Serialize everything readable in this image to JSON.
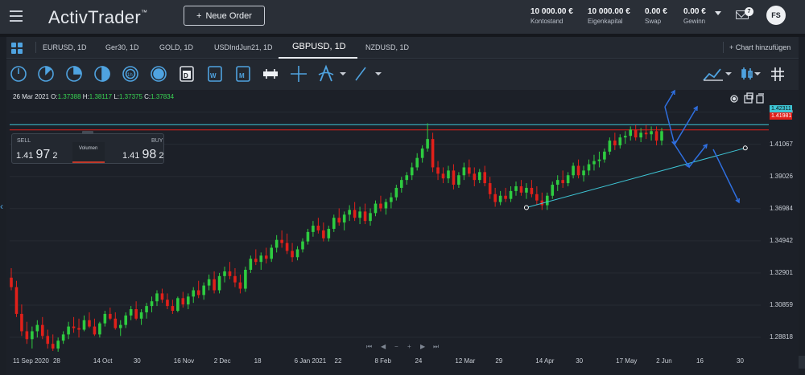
{
  "app": {
    "logo_text": "ActivTrader",
    "logo_tm": "™",
    "new_order_label": "Neue Order",
    "stats": [
      {
        "value": "10 000.00 €",
        "label": "Kontostand"
      },
      {
        "value": "10 000.00 €",
        "label": "Eigenkapital"
      },
      {
        "value": "0.00 €",
        "label": "Swap"
      },
      {
        "value": "0.00 €",
        "label": "Gewinn"
      }
    ],
    "notifications": "7",
    "avatar_initials": "FS"
  },
  "tabs": [
    {
      "label": "EURUSD, 1D"
    },
    {
      "label": "Ger30, 1D"
    },
    {
      "label": "GOLD, 1D"
    },
    {
      "label": "USDIndJun21, 1D"
    },
    {
      "label": "GBPUSD, 1D"
    },
    {
      "label": "NZDUSD, 1D"
    }
  ],
  "active_tab": "GBPUSD, 1D",
  "add_chart_label": "Chart hinzufügen",
  "toolbar_icons": [
    "clock-1m-icon",
    "clock-5m-icon",
    "clock-15m-icon",
    "clock-30m-icon",
    "clock-1h-icon",
    "clock-4h-icon",
    "calendar-day-icon",
    "calendar-week-icon",
    "calendar-month-icon",
    "chart-type-icon",
    "crosshair-icon",
    "indicators-icon",
    "trendline-icon"
  ],
  "toolbar_right_icons": [
    "line-chart-icon",
    "candle-settings-icon",
    "grid-icon"
  ],
  "ohlc": {
    "date": "26 Mar 2021",
    "o_label": "O:",
    "o": "1.37388",
    "h_label": "H:",
    "h": "1.38117",
    "l_label": "L:",
    "l": "1.37375",
    "c_label": "C:",
    "c": "1.37834"
  },
  "trade_box": {
    "sell_label": "SELL",
    "buy_label": "BUY",
    "sell_prefix": "1.41",
    "sell_big": "97",
    "sell_suffix": "2",
    "buy_prefix": "1.41",
    "buy_big": "98",
    "buy_suffix": "2",
    "volume_label": "Volumen"
  },
  "colors": {
    "up": "#2ecc40",
    "down": "#e0201a",
    "trend_line": "#3ec6d6",
    "ask_line": "#e0201a",
    "bid_line": "#3ec6d6",
    "arrow": "#2f6fe0",
    "accent": "#4fa3e0"
  },
  "chart_data": {
    "type": "candlestick",
    "symbol": "GBPUSD",
    "timeframe": "1D",
    "y_ticks": [
      "1.43109",
      "1.41067",
      "1.39026",
      "1.36984",
      "1.34942",
      "1.32901",
      "1.30859",
      "1.28818"
    ],
    "ylim": [
      1.279,
      1.437
    ],
    "current_ask": "1.42311",
    "current_bid": "1.41981",
    "x_ticks": [
      "11 Sep 2020",
      "28",
      "14 Oct",
      "30",
      "16 Nov",
      "2 Dec",
      "18",
      "6 Jan 2021",
      "22",
      "8 Feb",
      "24",
      "12 Mar",
      "29",
      "14 Apr",
      "30",
      "17 May",
      "2 Jun",
      "16",
      "30"
    ],
    "series": [
      {
        "name": "GBPUSD",
        "values": [
          {
            "o": 1.326,
            "h": 1.332,
            "l": 1.318,
            "c": 1.32
          },
          {
            "o": 1.32,
            "h": 1.324,
            "l": 1.301,
            "c": 1.303
          },
          {
            "o": 1.303,
            "h": 1.309,
            "l": 1.289,
            "c": 1.292
          },
          {
            "o": 1.292,
            "h": 1.298,
            "l": 1.284,
            "c": 1.287
          },
          {
            "o": 1.287,
            "h": 1.295,
            "l": 1.281,
            "c": 1.292
          },
          {
            "o": 1.292,
            "h": 1.299,
            "l": 1.288,
            "c": 1.296
          },
          {
            "o": 1.296,
            "h": 1.301,
            "l": 1.287,
            "c": 1.289
          },
          {
            "o": 1.289,
            "h": 1.293,
            "l": 1.281,
            "c": 1.284
          },
          {
            "o": 1.284,
            "h": 1.29,
            "l": 1.2795,
            "c": 1.281
          },
          {
            "o": 1.281,
            "h": 1.288,
            "l": 1.279,
            "c": 1.286
          },
          {
            "o": 1.286,
            "h": 1.292,
            "l": 1.284,
            "c": 1.29
          },
          {
            "o": 1.29,
            "h": 1.298,
            "l": 1.287,
            "c": 1.295
          },
          {
            "o": 1.295,
            "h": 1.301,
            "l": 1.291,
            "c": 1.294
          },
          {
            "o": 1.294,
            "h": 1.3,
            "l": 1.288,
            "c": 1.293
          },
          {
            "o": 1.293,
            "h": 1.302,
            "l": 1.292,
            "c": 1.299
          },
          {
            "o": 1.299,
            "h": 1.304,
            "l": 1.294,
            "c": 1.295
          },
          {
            "o": 1.295,
            "h": 1.3,
            "l": 1.289,
            "c": 1.29
          },
          {
            "o": 1.29,
            "h": 1.298,
            "l": 1.288,
            "c": 1.297
          },
          {
            "o": 1.297,
            "h": 1.305,
            "l": 1.295,
            "c": 1.303
          },
          {
            "o": 1.303,
            "h": 1.307,
            "l": 1.299,
            "c": 1.3
          },
          {
            "o": 1.3,
            "h": 1.304,
            "l": 1.293,
            "c": 1.294
          },
          {
            "o": 1.294,
            "h": 1.299,
            "l": 1.289,
            "c": 1.296
          },
          {
            "o": 1.296,
            "h": 1.304,
            "l": 1.294,
            "c": 1.302
          },
          {
            "o": 1.302,
            "h": 1.308,
            "l": 1.299,
            "c": 1.306
          },
          {
            "o": 1.306,
            "h": 1.311,
            "l": 1.299,
            "c": 1.3
          },
          {
            "o": 1.3,
            "h": 1.306,
            "l": 1.296,
            "c": 1.304
          },
          {
            "o": 1.304,
            "h": 1.31,
            "l": 1.3,
            "c": 1.308
          },
          {
            "o": 1.308,
            "h": 1.314,
            "l": 1.304,
            "c": 1.311
          },
          {
            "o": 1.311,
            "h": 1.318,
            "l": 1.308,
            "c": 1.316
          },
          {
            "o": 1.316,
            "h": 1.319,
            "l": 1.31,
            "c": 1.312
          },
          {
            "o": 1.312,
            "h": 1.316,
            "l": 1.306,
            "c": 1.308
          },
          {
            "o": 1.308,
            "h": 1.312,
            "l": 1.303,
            "c": 1.305
          },
          {
            "o": 1.305,
            "h": 1.314,
            "l": 1.304,
            "c": 1.313
          },
          {
            "o": 1.313,
            "h": 1.317,
            "l": 1.307,
            "c": 1.309
          },
          {
            "o": 1.309,
            "h": 1.316,
            "l": 1.306,
            "c": 1.314
          },
          {
            "o": 1.314,
            "h": 1.32,
            "l": 1.31,
            "c": 1.318
          },
          {
            "o": 1.318,
            "h": 1.324,
            "l": 1.313,
            "c": 1.315
          },
          {
            "o": 1.315,
            "h": 1.323,
            "l": 1.312,
            "c": 1.321
          },
          {
            "o": 1.321,
            "h": 1.328,
            "l": 1.318,
            "c": 1.325
          },
          {
            "o": 1.325,
            "h": 1.33,
            "l": 1.316,
            "c": 1.318
          },
          {
            "o": 1.318,
            "h": 1.329,
            "l": 1.316,
            "c": 1.327
          },
          {
            "o": 1.327,
            "h": 1.333,
            "l": 1.323,
            "c": 1.33
          },
          {
            "o": 1.33,
            "h": 1.336,
            "l": 1.325,
            "c": 1.327
          },
          {
            "o": 1.327,
            "h": 1.332,
            "l": 1.32,
            "c": 1.323
          },
          {
            "o": 1.323,
            "h": 1.328,
            "l": 1.316,
            "c": 1.319
          },
          {
            "o": 1.319,
            "h": 1.333,
            "l": 1.317,
            "c": 1.331
          },
          {
            "o": 1.331,
            "h": 1.34,
            "l": 1.329,
            "c": 1.338
          },
          {
            "o": 1.338,
            "h": 1.344,
            "l": 1.334,
            "c": 1.336
          },
          {
            "o": 1.336,
            "h": 1.342,
            "l": 1.331,
            "c": 1.34
          },
          {
            "o": 1.34,
            "h": 1.345,
            "l": 1.335,
            "c": 1.338
          },
          {
            "o": 1.338,
            "h": 1.347,
            "l": 1.336,
            "c": 1.345
          },
          {
            "o": 1.345,
            "h": 1.353,
            "l": 1.342,
            "c": 1.35
          },
          {
            "o": 1.35,
            "h": 1.356,
            "l": 1.345,
            "c": 1.348
          },
          {
            "o": 1.348,
            "h": 1.354,
            "l": 1.341,
            "c": 1.343
          },
          {
            "o": 1.343,
            "h": 1.348,
            "l": 1.336,
            "c": 1.339
          },
          {
            "o": 1.339,
            "h": 1.346,
            "l": 1.337,
            "c": 1.344
          },
          {
            "o": 1.344,
            "h": 1.351,
            "l": 1.342,
            "c": 1.349
          },
          {
            "o": 1.349,
            "h": 1.357,
            "l": 1.347,
            "c": 1.355
          },
          {
            "o": 1.355,
            "h": 1.362,
            "l": 1.352,
            "c": 1.359
          },
          {
            "o": 1.359,
            "h": 1.364,
            "l": 1.354,
            "c": 1.356
          },
          {
            "o": 1.356,
            "h": 1.361,
            "l": 1.349,
            "c": 1.351
          },
          {
            "o": 1.351,
            "h": 1.359,
            "l": 1.349,
            "c": 1.357
          },
          {
            "o": 1.357,
            "h": 1.366,
            "l": 1.355,
            "c": 1.364
          },
          {
            "o": 1.364,
            "h": 1.37,
            "l": 1.359,
            "c": 1.361
          },
          {
            "o": 1.361,
            "h": 1.368,
            "l": 1.356,
            "c": 1.366
          },
          {
            "o": 1.366,
            "h": 1.372,
            "l": 1.362,
            "c": 1.369
          },
          {
            "o": 1.369,
            "h": 1.374,
            "l": 1.362,
            "c": 1.364
          },
          {
            "o": 1.364,
            "h": 1.371,
            "l": 1.36,
            "c": 1.368
          },
          {
            "o": 1.368,
            "h": 1.373,
            "l": 1.36,
            "c": 1.362
          },
          {
            "o": 1.362,
            "h": 1.37,
            "l": 1.359,
            "c": 1.367
          },
          {
            "o": 1.367,
            "h": 1.375,
            "l": 1.365,
            "c": 1.373
          },
          {
            "o": 1.373,
            "h": 1.378,
            "l": 1.368,
            "c": 1.37
          },
          {
            "o": 1.37,
            "h": 1.376,
            "l": 1.366,
            "c": 1.374
          },
          {
            "o": 1.374,
            "h": 1.38,
            "l": 1.37,
            "c": 1.377
          },
          {
            "o": 1.377,
            "h": 1.385,
            "l": 1.375,
            "c": 1.383
          },
          {
            "o": 1.383,
            "h": 1.39,
            "l": 1.38,
            "c": 1.388
          },
          {
            "o": 1.388,
            "h": 1.393,
            "l": 1.385,
            "c": 1.391
          },
          {
            "o": 1.391,
            "h": 1.399,
            "l": 1.388,
            "c": 1.396
          },
          {
            "o": 1.396,
            "h": 1.405,
            "l": 1.394,
            "c": 1.402
          },
          {
            "o": 1.402,
            "h": 1.41,
            "l": 1.399,
            "c": 1.408
          },
          {
            "o": 1.408,
            "h": 1.424,
            "l": 1.406,
            "c": 1.414
          },
          {
            "o": 1.414,
            "h": 1.418,
            "l": 1.393,
            "c": 1.396
          },
          {
            "o": 1.396,
            "h": 1.4,
            "l": 1.388,
            "c": 1.392
          },
          {
            "o": 1.392,
            "h": 1.396,
            "l": 1.386,
            "c": 1.389
          },
          {
            "o": 1.389,
            "h": 1.397,
            "l": 1.386,
            "c": 1.394
          },
          {
            "o": 1.394,
            "h": 1.398,
            "l": 1.382,
            "c": 1.385
          },
          {
            "o": 1.385,
            "h": 1.393,
            "l": 1.383,
            "c": 1.391
          },
          {
            "o": 1.391,
            "h": 1.399,
            "l": 1.388,
            "c": 1.396
          },
          {
            "o": 1.396,
            "h": 1.401,
            "l": 1.39,
            "c": 1.392
          },
          {
            "o": 1.392,
            "h": 1.396,
            "l": 1.384,
            "c": 1.388
          },
          {
            "o": 1.388,
            "h": 1.395,
            "l": 1.386,
            "c": 1.393
          },
          {
            "o": 1.393,
            "h": 1.397,
            "l": 1.384,
            "c": 1.386
          },
          {
            "o": 1.386,
            "h": 1.39,
            "l": 1.376,
            "c": 1.379
          },
          {
            "o": 1.379,
            "h": 1.383,
            "l": 1.371,
            "c": 1.374
          },
          {
            "o": 1.374,
            "h": 1.381,
            "l": 1.372,
            "c": 1.378
          },
          {
            "o": 1.378,
            "h": 1.383,
            "l": 1.374,
            "c": 1.376
          },
          {
            "o": 1.376,
            "h": 1.384,
            "l": 1.374,
            "c": 1.381
          },
          {
            "o": 1.381,
            "h": 1.387,
            "l": 1.378,
            "c": 1.384
          },
          {
            "o": 1.384,
            "h": 1.388,
            "l": 1.378,
            "c": 1.38
          },
          {
            "o": 1.38,
            "h": 1.386,
            "l": 1.376,
            "c": 1.383
          },
          {
            "o": 1.383,
            "h": 1.388,
            "l": 1.377,
            "c": 1.379
          },
          {
            "o": 1.379,
            "h": 1.384,
            "l": 1.372,
            "c": 1.375
          },
          {
            "o": 1.375,
            "h": 1.38,
            "l": 1.369,
            "c": 1.372
          },
          {
            "o": 1.372,
            "h": 1.38,
            "l": 1.369,
            "c": 1.378
          },
          {
            "o": 1.378,
            "h": 1.387,
            "l": 1.376,
            "c": 1.385
          },
          {
            "o": 1.385,
            "h": 1.391,
            "l": 1.381,
            "c": 1.388
          },
          {
            "o": 1.388,
            "h": 1.394,
            "l": 1.383,
            "c": 1.386
          },
          {
            "o": 1.386,
            "h": 1.393,
            "l": 1.384,
            "c": 1.391
          },
          {
            "o": 1.391,
            "h": 1.399,
            "l": 1.389,
            "c": 1.397
          },
          {
            "o": 1.397,
            "h": 1.401,
            "l": 1.389,
            "c": 1.391
          },
          {
            "o": 1.391,
            "h": 1.397,
            "l": 1.387,
            "c": 1.394
          },
          {
            "o": 1.394,
            "h": 1.401,
            "l": 1.391,
            "c": 1.398
          },
          {
            "o": 1.398,
            "h": 1.404,
            "l": 1.394,
            "c": 1.4
          },
          {
            "o": 1.4,
            "h": 1.406,
            "l": 1.396,
            "c": 1.401
          },
          {
            "o": 1.401,
            "h": 1.408,
            "l": 1.399,
            "c": 1.406
          },
          {
            "o": 1.406,
            "h": 1.415,
            "l": 1.404,
            "c": 1.413
          },
          {
            "o": 1.413,
            "h": 1.418,
            "l": 1.407,
            "c": 1.41
          },
          {
            "o": 1.41,
            "h": 1.417,
            "l": 1.408,
            "c": 1.415
          },
          {
            "o": 1.415,
            "h": 1.419,
            "l": 1.411,
            "c": 1.416
          },
          {
            "o": 1.416,
            "h": 1.422,
            "l": 1.413,
            "c": 1.42
          },
          {
            "o": 1.42,
            "h": 1.423,
            "l": 1.413,
            "c": 1.415
          },
          {
            "o": 1.415,
            "h": 1.421,
            "l": 1.412,
            "c": 1.418
          },
          {
            "o": 1.418,
            "h": 1.423,
            "l": 1.414,
            "c": 1.417
          },
          {
            "o": 1.417,
            "h": 1.422,
            "l": 1.413,
            "c": 1.419
          },
          {
            "o": 1.419,
            "h": 1.422,
            "l": 1.41,
            "c": 1.413
          },
          {
            "o": 1.413,
            "h": 1.421,
            "l": 1.41,
            "c": 1.419
          }
        ]
      }
    ],
    "drawings": {
      "trendline": {
        "from": {
          "x_index": 99,
          "y": 1.3705
        },
        "to": {
          "x_index": 131,
          "y": 1.4083
        }
      }
    }
  }
}
